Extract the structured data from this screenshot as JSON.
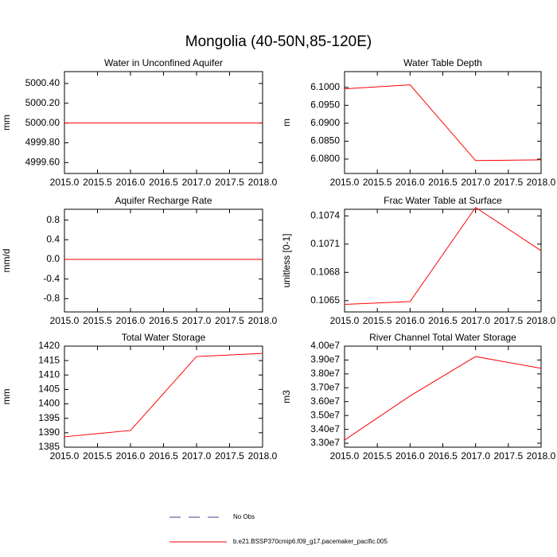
{
  "title": "Mongolia (40-50N,85-120E)",
  "legend": [
    {
      "name": "No Obs",
      "color": "#4b3c8c",
      "dashed": true
    },
    {
      "name": "b.e21.BSSP370cmip6.f09_g17.pacemaker_pacific.005",
      "color": "#ff0000",
      "dashed": false
    }
  ],
  "chart_data": [
    {
      "type": "line",
      "title": "Water in Unconfined Aquifer",
      "ylabel": "mm",
      "x": [
        2015,
        2016,
        2017,
        2018
      ],
      "xlim": [
        2015,
        2018
      ],
      "xticks": [
        {
          "value": 2015,
          "label": "2015.0"
        },
        {
          "value": 2015.5,
          "label": "2015.5"
        },
        {
          "value": 2016,
          "label": "2016.0"
        },
        {
          "value": 2016.5,
          "label": "2016.5"
        },
        {
          "value": 2017,
          "label": "2017.0"
        },
        {
          "value": 2017.5,
          "label": "2017.5"
        },
        {
          "value": 2018,
          "label": "2018.0"
        }
      ],
      "ylim": [
        4999.49,
        5000.52
      ],
      "yticks": [
        {
          "value": 4999.6,
          "label": "4999.60"
        },
        {
          "value": 4999.8,
          "label": "4999.80"
        },
        {
          "value": 5000,
          "label": "5000.00"
        },
        {
          "value": 5000.2,
          "label": "5000.20"
        },
        {
          "value": 5000.4,
          "label": "5000.40"
        }
      ],
      "series": [
        {
          "color": "#ff0000",
          "values": [
            5000,
            5000,
            5000,
            5000
          ]
        }
      ]
    },
    {
      "type": "line",
      "title": "Water Table Depth",
      "ylabel": "m",
      "x": [
        2015,
        2016,
        2017,
        2018
      ],
      "xlim": [
        2015,
        2018
      ],
      "xticks": [
        {
          "value": 2015,
          "label": "2015.0"
        },
        {
          "value": 2015.5,
          "label": "2015.5"
        },
        {
          "value": 2016,
          "label": "2016.0"
        },
        {
          "value": 2016.5,
          "label": "2016.5"
        },
        {
          "value": 2017,
          "label": "2017.0"
        },
        {
          "value": 2017.5,
          "label": "2017.5"
        },
        {
          "value": 2018,
          "label": "2018.0"
        }
      ],
      "ylim": [
        6.076,
        6.1044
      ],
      "yticks": [
        {
          "value": 6.08,
          "label": "6.0800"
        },
        {
          "value": 6.085,
          "label": "6.0850"
        },
        {
          "value": 6.09,
          "label": "6.0900"
        },
        {
          "value": 6.095,
          "label": "6.0950"
        },
        {
          "value": 6.1,
          "label": "6.1000"
        }
      ],
      "series": [
        {
          "color": "#ff0000",
          "values": [
            6.0996,
            6.1007,
            6.0796,
            6.0798
          ]
        }
      ]
    },
    {
      "type": "line",
      "title": "Aquifer Recharge Rate",
      "ylabel": "mm/d",
      "x": [
        2015,
        2016,
        2017,
        2018
      ],
      "xlim": [
        2015,
        2018
      ],
      "xticks": [
        {
          "value": 2015,
          "label": "2015.0"
        },
        {
          "value": 2015.5,
          "label": "2015.5"
        },
        {
          "value": 2016,
          "label": "2016.0"
        },
        {
          "value": 2016.5,
          "label": "2016.5"
        },
        {
          "value": 2017,
          "label": "2017.0"
        },
        {
          "value": 2017.5,
          "label": "2017.5"
        },
        {
          "value": 2018,
          "label": "2018.0"
        }
      ],
      "ylim": [
        -1.07,
        1.02
      ],
      "yticks": [
        {
          "value": -0.8,
          "label": "-0.8"
        },
        {
          "value": -0.4,
          "label": "-0.4"
        },
        {
          "value": 0,
          "label": "0.0"
        },
        {
          "value": 0.4,
          "label": "0.4"
        },
        {
          "value": 0.8,
          "label": "0.8"
        }
      ],
      "series": [
        {
          "color": "#ff0000",
          "values": [
            0,
            0,
            0,
            0
          ]
        }
      ]
    },
    {
      "type": "line",
      "title": "Frac Water Table at Surface",
      "ylabel": "unitless [0-1]",
      "x": [
        2015,
        2016,
        2017,
        2018
      ],
      "xlim": [
        2015,
        2018
      ],
      "xticks": [
        {
          "value": 2015,
          "label": "2015.0"
        },
        {
          "value": 2015.5,
          "label": "2015.5"
        },
        {
          "value": 2016,
          "label": "2016.0"
        },
        {
          "value": 2016.5,
          "label": "2016.5"
        },
        {
          "value": 2017,
          "label": "2017.0"
        },
        {
          "value": 2017.5,
          "label": "2017.5"
        },
        {
          "value": 2018,
          "label": "2018.0"
        }
      ],
      "ylim": [
        0.10638,
        0.10747
      ],
      "yticks": [
        0.1065,
        0.1068,
        0.1071,
        0.1074
      ],
      "series": [
        {
          "color": "#ff0000",
          "values": [
            0.10646,
            0.10649,
            0.10749,
            0.10703
          ]
        }
      ]
    },
    {
      "type": "line",
      "title": "Total Water Storage",
      "ylabel": "mm",
      "x": [
        2015,
        2016,
        2017,
        2018
      ],
      "xlim": [
        2015,
        2018
      ],
      "xticks": [
        {
          "value": 2015,
          "label": "2015.0"
        },
        {
          "value": 2015.5,
          "label": "2015.5"
        },
        {
          "value": 2016,
          "label": "2016.0"
        },
        {
          "value": 2016.5,
          "label": "2016.5"
        },
        {
          "value": 2017,
          "label": "2017.0"
        },
        {
          "value": 2017.5,
          "label": "2017.5"
        },
        {
          "value": 2018,
          "label": "2018.0"
        }
      ],
      "ylim": [
        1385,
        1420
      ],
      "yticks": [
        1385,
        1390,
        1395,
        1400,
        1405,
        1410,
        1415,
        1420
      ],
      "series": [
        {
          "color": "#ff0000",
          "values": [
            1388.6,
            1390.8,
            1416.4,
            1417.5
          ]
        }
      ]
    },
    {
      "type": "line",
      "title": "River Channel Total Water Storage",
      "ylabel": "m3",
      "x": [
        2015,
        2016,
        2017,
        2018
      ],
      "xlim": [
        2015,
        2018
      ],
      "xticks": [
        {
          "value": 2015,
          "label": "2015.0"
        },
        {
          "value": 2015.5,
          "label": "2015.5"
        },
        {
          "value": 2016,
          "label": "2016.0"
        },
        {
          "value": 2016.5,
          "label": "2016.5"
        },
        {
          "value": 2017,
          "label": "2017.0"
        },
        {
          "value": 2017.5,
          "label": "2017.5"
        },
        {
          "value": 2018,
          "label": "2018.0"
        }
      ],
      "ylim": [
        32716000,
        40000000
      ],
      "yticks": [
        {
          "value": 33000000,
          "label": "3.30e7"
        },
        {
          "value": 34000000,
          "label": "3.40e7"
        },
        {
          "value": 35000000,
          "label": "3.50e7"
        },
        {
          "value": 36000000,
          "label": "3.60e7"
        },
        {
          "value": 37000000,
          "label": "3.70e7"
        },
        {
          "value": 38000000,
          "label": "3.80e7"
        },
        {
          "value": 39000000,
          "label": "3.90e7"
        },
        {
          "value": 40000000,
          "label": "4.00e7"
        }
      ],
      "series": [
        {
          "color": "#ff0000",
          "values": [
            33230000,
            36410000,
            39250000,
            38400000
          ]
        }
      ]
    }
  ]
}
